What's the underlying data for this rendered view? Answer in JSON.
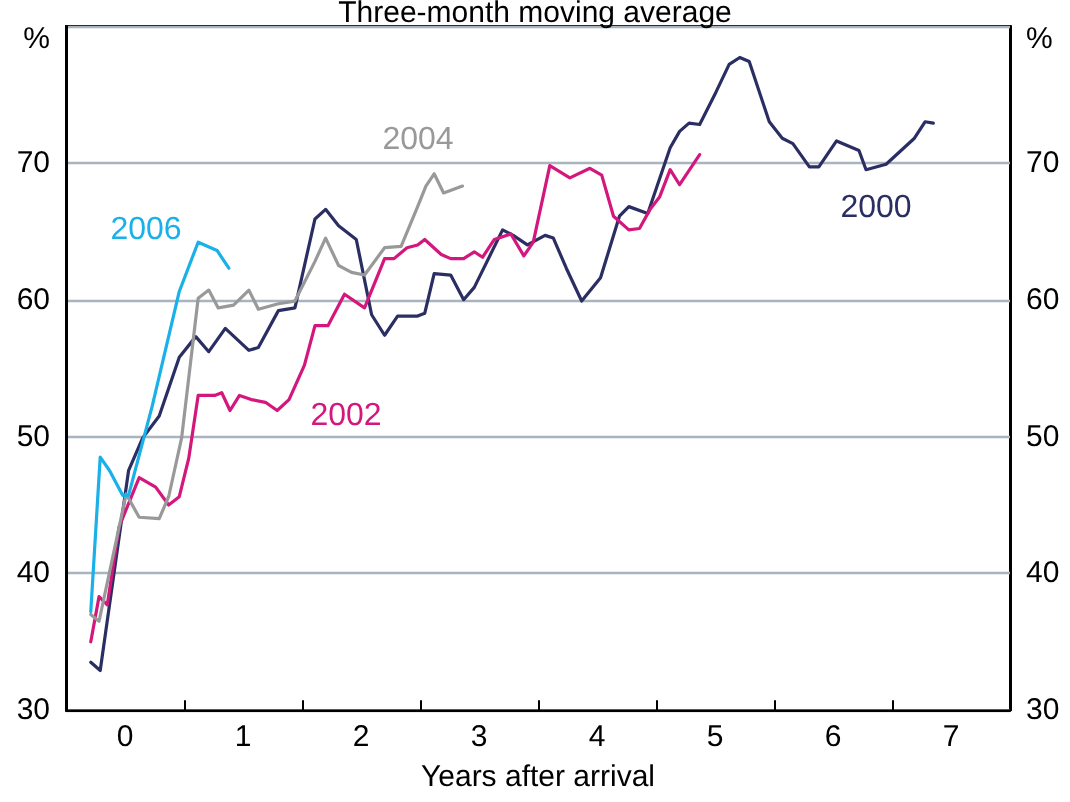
{
  "chart_data": {
    "type": "line",
    "title": "Three-month moving average",
    "xlabel": "Years after arrival",
    "ylabel": "%",
    "y2label": "%",
    "xlim": [
      -0.5,
      7.5
    ],
    "xticks": [
      0,
      1,
      2,
      3,
      4,
      5,
      6,
      7,
      {
        "value": 0.5,
        "label": null
      },
      {
        "value": 1.5,
        "label": null
      },
      {
        "value": 2.5,
        "label": null
      },
      {
        "value": 3.5,
        "label": null
      },
      {
        "value": 4.5,
        "label": null
      },
      {
        "value": 5.5,
        "label": null
      },
      {
        "value": 6.5,
        "label": null
      }
    ],
    "ylim": [
      30,
      80
    ],
    "yticks": [
      30,
      40,
      50,
      60,
      70
    ],
    "y2lim": [
      30,
      80
    ],
    "y2ticks": [
      30,
      40,
      50,
      60,
      70
    ],
    "grid": "y",
    "legend": false,
    "marker": "none",
    "line_style": "solid",
    "series": [
      {
        "name": "2000",
        "color": "#2b2e63",
        "x": [
          -0.29,
          -0.21,
          0.03,
          0.15,
          0.29,
          0.46,
          0.6,
          0.71,
          0.85,
          1.05,
          1.13,
          1.3,
          1.44,
          1.61,
          1.7,
          1.81,
          1.96,
          2.09,
          2.2,
          2.31,
          2.48,
          2.54,
          2.62,
          2.76,
          2.87,
          2.96,
          3.2,
          3.29,
          3.41,
          3.56,
          3.63,
          3.74,
          3.87,
          4.03,
          4.19,
          4.27,
          4.43,
          4.62,
          4.7,
          4.78,
          4.87,
          5.01,
          5.12,
          5.21,
          5.29,
          5.46,
          5.57,
          5.66,
          5.8,
          5.88,
          6.03,
          6.22,
          6.28,
          6.45,
          6.69,
          6.78,
          6.85
        ],
        "values": [
          33.5,
          32.9,
          47.5,
          49.9,
          51.5,
          55.8,
          57.3,
          56.2,
          57.9,
          56.3,
          56.5,
          59.2,
          59.4,
          65.9,
          66.6,
          65.4,
          64.4,
          58.9,
          57.4,
          58.8,
          58.8,
          59.0,
          61.9,
          61.8,
          60.0,
          60.9,
          65.1,
          64.7,
          64.0,
          64.7,
          64.5,
          62.3,
          59.9,
          61.6,
          66.1,
          66.8,
          66.3,
          71.1,
          72.3,
          72.9,
          72.8,
          75.2,
          77.2,
          77.7,
          77.4,
          73.0,
          71.8,
          71.4,
          69.7,
          69.7,
          71.6,
          70.9,
          69.5,
          69.9,
          71.8,
          73.0,
          72.9
        ]
      },
      {
        "name": "2002",
        "color": "#d4177d",
        "x": [
          -0.29,
          -0.22,
          -0.15,
          -0.05,
          0.12,
          0.26,
          0.37,
          0.46,
          0.54,
          0.62,
          0.76,
          0.82,
          0.89,
          0.97,
          1.07,
          1.19,
          1.29,
          1.39,
          1.52,
          1.61,
          1.72,
          1.86,
          2.03,
          2.2,
          2.28,
          2.39,
          2.48,
          2.54,
          2.68,
          2.76,
          2.87,
          2.96,
          3.03,
          3.13,
          3.27,
          3.38,
          3.46,
          3.6,
          3.77,
          3.94,
          4.04,
          4.14,
          4.27,
          4.36,
          4.45,
          4.53,
          4.62,
          4.7,
          4.87
        ],
        "values": [
          35.0,
          38.3,
          37.7,
          43.4,
          47.0,
          46.3,
          45.0,
          45.6,
          48.4,
          53.0,
          53.0,
          53.2,
          51.9,
          53.0,
          52.7,
          52.5,
          51.9,
          52.7,
          55.2,
          58.1,
          58.1,
          60.4,
          59.4,
          63.0,
          63.0,
          63.8,
          64.0,
          64.4,
          63.3,
          63.0,
          63.0,
          63.5,
          63.1,
          64.4,
          64.8,
          63.2,
          64.2,
          69.8,
          68.9,
          69.6,
          69.1,
          66.1,
          65.1,
          65.2,
          66.6,
          67.5,
          69.5,
          68.4,
          70.6
        ]
      },
      {
        "name": "2004",
        "color": "#999999",
        "x": [
          -0.29,
          -0.22,
          0.01,
          0.12,
          0.29,
          0.37,
          0.48,
          0.62,
          0.71,
          0.79,
          0.92,
          1.05,
          1.13,
          1.3,
          1.44,
          1.61,
          1.7,
          1.81,
          1.92,
          2.03,
          2.2,
          2.34,
          2.48,
          2.55,
          2.62,
          2.7,
          2.86
        ],
        "values": [
          37.0,
          36.5,
          45.8,
          44.1,
          44.0,
          45.6,
          49.9,
          60.1,
          60.7,
          59.4,
          59.6,
          60.7,
          59.3,
          59.7,
          59.9,
          62.8,
          64.5,
          62.5,
          62.0,
          61.8,
          63.8,
          63.9,
          66.8,
          68.3,
          69.2,
          67.8,
          68.3
        ]
      },
      {
        "name": "2006",
        "color": "#1ab0e8",
        "x": [
          -0.29,
          -0.21,
          -0.13,
          -0.02,
          0.03,
          0.23,
          0.46,
          0.62,
          0.78,
          0.88
        ],
        "values": [
          37.2,
          48.5,
          47.5,
          45.7,
          45.7,
          52.2,
          60.6,
          64.2,
          63.6,
          62.3
        ]
      }
    ]
  }
}
